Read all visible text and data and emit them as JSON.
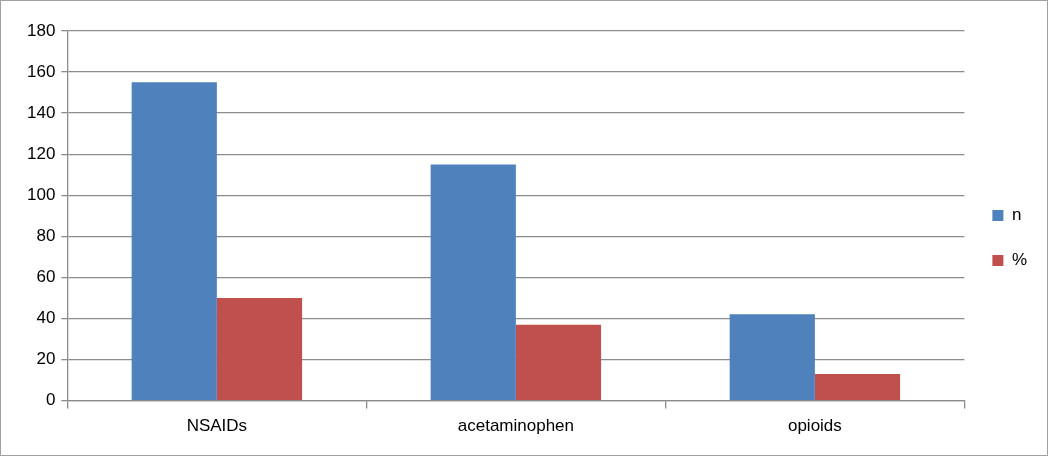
{
  "chart_data": {
    "type": "bar",
    "categories": [
      "NSAIDs",
      "acetaminophen",
      "opioids"
    ],
    "series": [
      {
        "name": "n",
        "color": "#4f81bd",
        "values": [
          155,
          115,
          42
        ]
      },
      {
        "name": "%",
        "color": "#c0504d",
        "values": [
          50,
          37,
          13
        ]
      }
    ],
    "ylim": [
      0,
      180
    ],
    "yticks": [
      0,
      20,
      40,
      60,
      80,
      100,
      120,
      140,
      160,
      180
    ],
    "grid": "y",
    "legend": "right"
  }
}
